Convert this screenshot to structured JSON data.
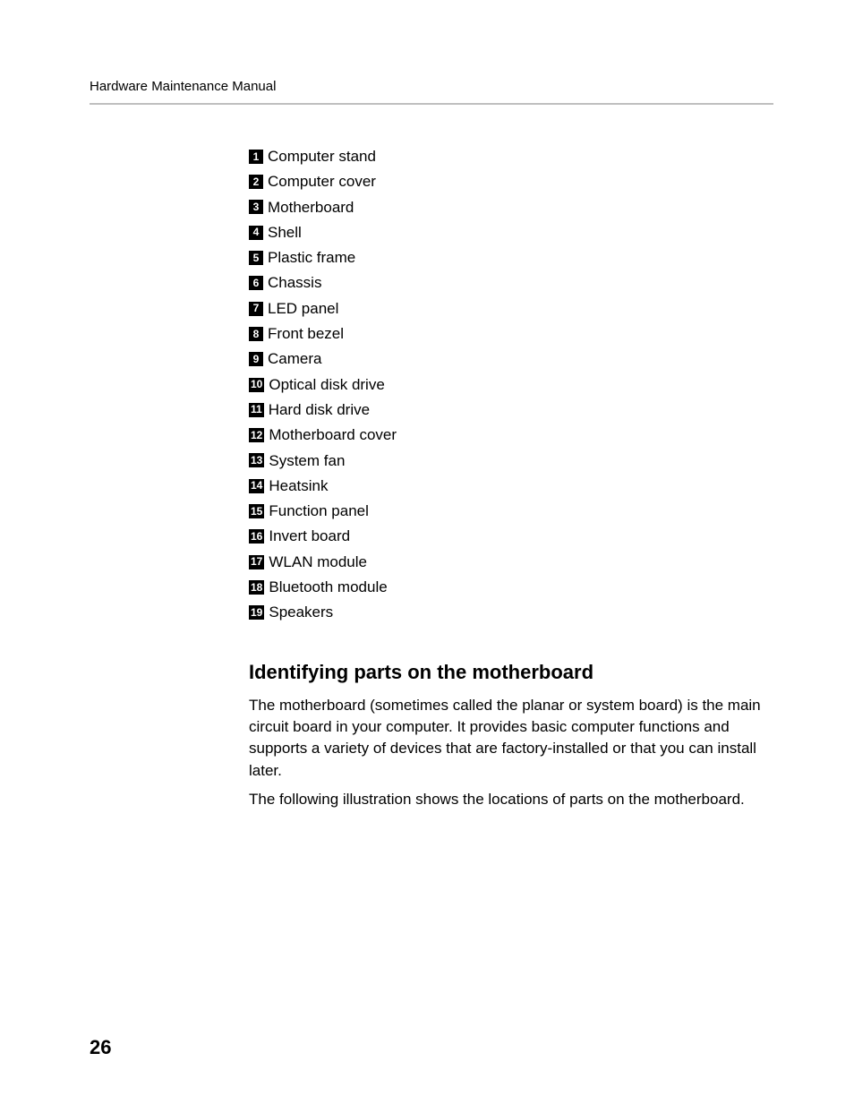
{
  "header": {
    "title": "Hardware Maintenance Manual"
  },
  "parts_list": [
    {
      "num": "1",
      "label": "Computer stand"
    },
    {
      "num": "2",
      "label": "Computer cover"
    },
    {
      "num": "3",
      "label": "Motherboard"
    },
    {
      "num": "4",
      "label": "Shell"
    },
    {
      "num": "5",
      "label": "Plastic frame"
    },
    {
      "num": "6",
      "label": "Chassis"
    },
    {
      "num": "7",
      "label": "LED panel"
    },
    {
      "num": "8",
      "label": "Front bezel"
    },
    {
      "num": "9",
      "label": "Camera"
    },
    {
      "num": "10",
      "label": "Optical disk drive"
    },
    {
      "num": "11",
      "label": "Hard disk drive"
    },
    {
      "num": "12",
      "label": "Motherboard cover"
    },
    {
      "num": "13",
      "label": "System fan"
    },
    {
      "num": "14",
      "label": "Heatsink"
    },
    {
      "num": "15",
      "label": "Function panel"
    },
    {
      "num": "16",
      "label": "Invert board"
    },
    {
      "num": "17",
      "label": "WLAN module"
    },
    {
      "num": "18",
      "label": "Bluetooth module"
    },
    {
      "num": "19",
      "label": "Speakers"
    }
  ],
  "section": {
    "heading": "Identifying parts on the motherboard",
    "para1": "The motherboard (sometimes called the planar or system board) is the main circuit board in your computer. It provides basic computer functions and supports a variety of devices that are factory-installed or that you can install later.",
    "para2": "The following illustration shows the locations of parts on the motherboard."
  },
  "page_number": "26",
  "colors": {
    "text": "#000000",
    "rule": "#bfbfbf",
    "numbox_bg": "#000000",
    "numbox_fg": "#ffffff",
    "background": "#ffffff"
  },
  "typography": {
    "header_fontsize": 15,
    "list_fontsize": 17,
    "heading_fontsize": 22,
    "body_fontsize": 17,
    "pagenum_fontsize": 22
  }
}
